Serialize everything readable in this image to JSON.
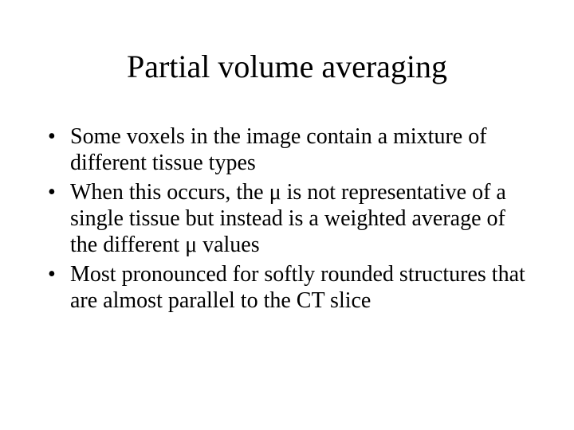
{
  "slide": {
    "title": "Partial volume averaging",
    "bullets": [
      "Some voxels in the image contain a mixture of different tissue types",
      "When this occurs, the μ is not representative of a single tissue but instead is a weighted average of the different μ values",
      "Most pronounced for softly rounded structures that are almost parallel to the CT slice"
    ],
    "colors": {
      "background": "#ffffff",
      "text": "#000000"
    },
    "typography": {
      "title_fontsize": 40,
      "body_fontsize": 28,
      "font_family": "Times New Roman"
    }
  }
}
